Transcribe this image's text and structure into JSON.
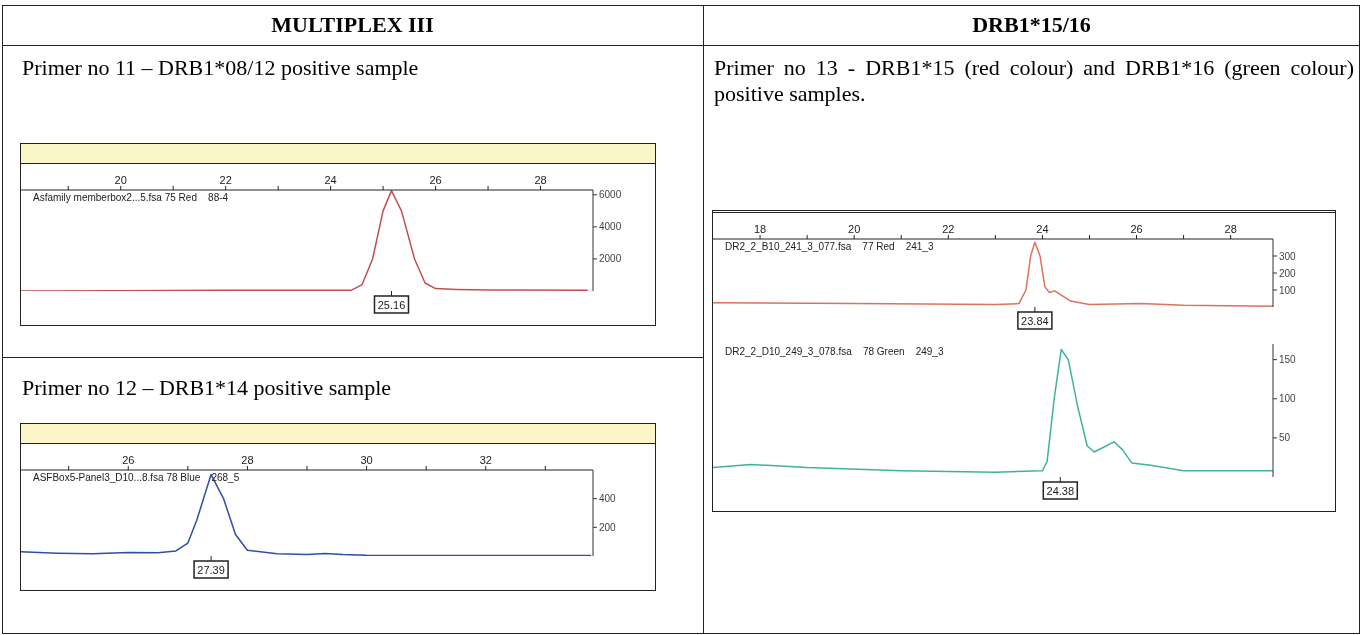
{
  "chart_data": [
    {
      "type": "line",
      "title": "MULTIPLEX III",
      "subtitle": "Primer no 11 – DRB1*08/12 positive sample",
      "annotations": [
        "Asfamily memberbox2...5.fsa 75 Red    88-4",
        {
          "text": "25.16",
          "x": 25.16
        }
      ],
      "xlim": [
        18.1,
        29.0
      ],
      "xticks": [
        {
          "value": 19,
          "label": null
        },
        20,
        {
          "value": 21,
          "label": null
        },
        22,
        {
          "value": 23,
          "label": null
        },
        24,
        {
          "value": 25,
          "label": null
        },
        26,
        {
          "value": 27,
          "label": null
        },
        28
      ],
      "ylim": [
        0,
        6300
      ],
      "yticks": [
        2000,
        4000,
        6000
      ],
      "series": [
        {
          "color": "#c0504d",
          "x": [
            18.1,
            20,
            22,
            24.4,
            24.6,
            24.8,
            25.0,
            25.16,
            25.35,
            25.6,
            25.8,
            26.0,
            26.4,
            27,
            28.9
          ],
          "values": [
            0,
            20,
            40,
            50,
            400,
            2000,
            5000,
            6260,
            5000,
            2000,
            500,
            150,
            100,
            60,
            50
          ]
        }
      ]
    },
    {
      "type": "line",
      "title": "Primer no 12 – DRB1*14 positive sample",
      "annotations": [
        "ASFBox5-Panel3_D10...8.fsa 78 Blue    268_5",
        {
          "text": "27.39",
          "x": 27.39
        }
      ],
      "xlim": [
        24.2,
        33.8
      ],
      "xticks": [
        {
          "value": 25,
          "label": null
        },
        26,
        {
          "value": 27,
          "label": null
        },
        28,
        {
          "value": 29,
          "label": null
        },
        30,
        {
          "value": 31,
          "label": null
        },
        32,
        {
          "value": 33,
          "label": null
        }
      ],
      "ylim": [
        0,
        600
      ],
      "yticks": [
        200,
        400
      ],
      "series": [
        {
          "color": "#2e4fa8",
          "x": [
            24.2,
            24.8,
            25.4,
            26.0,
            26.5,
            26.8,
            27.0,
            27.15,
            27.39,
            27.6,
            27.8,
            28.0,
            28.5,
            29.0,
            29.3,
            29.6,
            30.0,
            31,
            33.77
          ],
          "values": [
            30,
            20,
            15,
            25,
            22,
            35,
            90,
            250,
            568,
            400,
            150,
            40,
            15,
            10,
            18,
            10,
            5,
            3,
            3
          ]
        }
      ]
    },
    {
      "type": "line",
      "title": "DRB1*15/16",
      "subtitle": "Primer no 13 - DRB1*15 (red colour) and DRB1*16 (green colour) positive samples.",
      "annotations": [
        "DR2_2_B10_241_3_077.fsa    77 Red    241_3",
        {
          "text": "23.84",
          "x": 23.84
        }
      ],
      "xlim": [
        17.0,
        28.9
      ],
      "xticks": [
        18,
        {
          "value": 19,
          "label": null
        },
        20,
        {
          "value": 21,
          "label": null
        },
        22,
        {
          "value": 23,
          "label": null
        },
        24,
        {
          "value": 25,
          "label": null
        },
        26,
        {
          "value": 27,
          "label": null
        },
        28
      ],
      "ylim": [
        0,
        400
      ],
      "yticks": [
        100,
        200,
        300
      ],
      "series": [
        {
          "color": "#d9735f",
          "x": [
            17,
            20,
            23,
            23.5,
            23.65,
            23.75,
            23.84,
            23.95,
            24.05,
            24.15,
            24.26,
            24.4,
            24.6,
            25,
            26.1,
            27,
            28.9
          ],
          "values": [
            25,
            20,
            15,
            20,
            100,
            300,
            381,
            300,
            120,
            85,
            95,
            70,
            35,
            15,
            20,
            10,
            5
          ]
        }
      ]
    },
    {
      "type": "line",
      "tick_labels": "y",
      "annotations": [
        "DR2_2_D10_249_3_078.fsa    78 Green    249_3",
        {
          "text": "24.38",
          "x": 24.38
        }
      ],
      "xlim": [
        17.0,
        28.9
      ],
      "ylim": [
        0,
        170
      ],
      "yticks": [
        50,
        100,
        150
      ],
      "series": [
        {
          "color": "#3fb39a",
          "x": [
            17,
            17.8,
            19,
            21,
            23,
            24.0,
            24.1,
            24.25,
            24.4,
            24.55,
            24.75,
            24.95,
            25.1,
            25.3,
            25.52,
            25.7,
            25.9,
            26.3,
            27,
            28,
            28.9
          ],
          "values": [
            12,
            16,
            12,
            8,
            6,
            8,
            20,
            100,
            163,
            150,
            90,
            40,
            32,
            38,
            45,
            35,
            18,
            15,
            8,
            8,
            8
          ]
        }
      ]
    }
  ]
}
